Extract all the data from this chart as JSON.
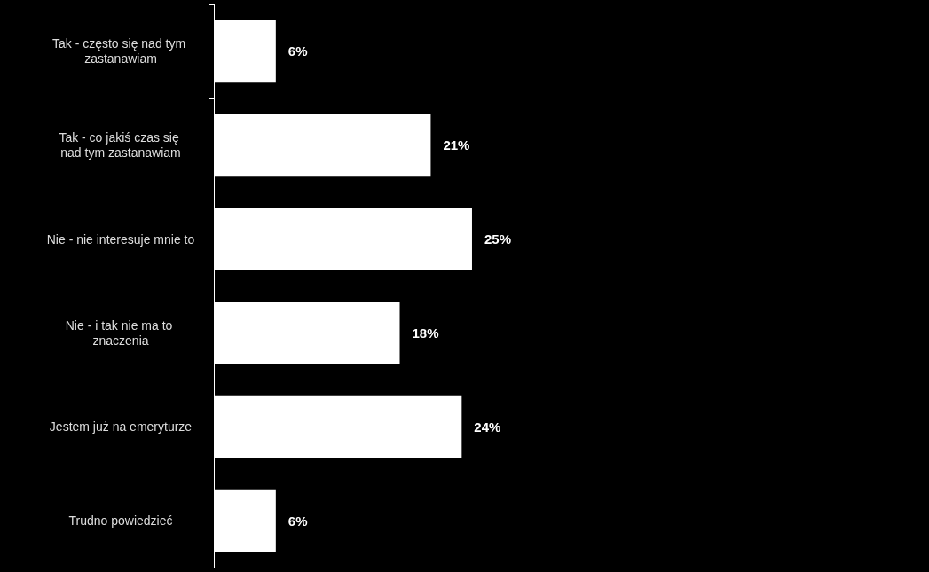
{
  "chart_data": {
    "type": "bar",
    "orientation": "horizontal",
    "categories": [
      "Tak - często się nad tym zastanawiam",
      "Tak - co jakiś czas się nad tym zastanawiam",
      "Nie - nie interesuje mnie to",
      "Nie - i tak nie ma to znaczenia",
      "Jestem już na emeryturze",
      "Trudno powiedzieć"
    ],
    "values": [
      6,
      21,
      25,
      18,
      24,
      6
    ],
    "value_labels": [
      "6%",
      "21%",
      "25%",
      "18%",
      "24%",
      "6%"
    ],
    "color": "#ffffff"
  }
}
